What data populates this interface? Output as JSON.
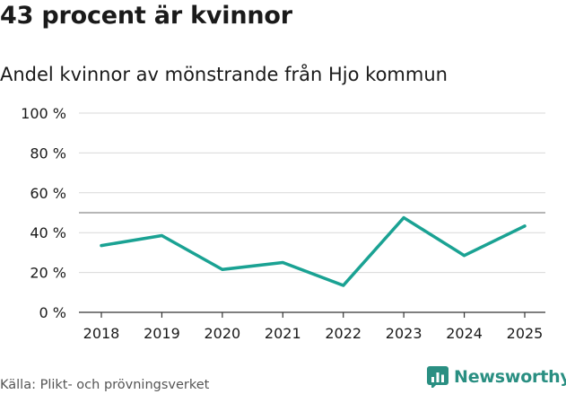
{
  "title": "43 procent är kvinnor",
  "subtitle": "Andel kvinnor av mönstrande från Hjo kommun",
  "source": "Källa: Plikt- och prövningsverket",
  "brand": {
    "name": "Newsworthy"
  },
  "colors": {
    "line": "#1aa293",
    "grid": "#d9d9d9",
    "reference": "#8a8a8a",
    "text": "#1a1a1a",
    "brand": "#2a8f82"
  },
  "chart_data": {
    "type": "line",
    "title": "Andel kvinnor av mönstrande från Hjo kommun",
    "xlabel": "",
    "ylabel": "",
    "categories": [
      "2018",
      "2019",
      "2020",
      "2021",
      "2022",
      "2023",
      "2024",
      "2025"
    ],
    "series": [
      {
        "name": "Andel kvinnor",
        "values": [
          33.5,
          38.5,
          21.5,
          25,
          13.5,
          47.5,
          28.5,
          43.3
        ]
      }
    ],
    "ylim": [
      0,
      100
    ],
    "yticks": [
      0,
      20,
      40,
      60,
      80,
      100
    ],
    "ytick_labels": [
      "0 %",
      "20 %",
      "40 %",
      "60 %",
      "80 %",
      "100 %"
    ],
    "reference_line": 50,
    "grid": true
  }
}
